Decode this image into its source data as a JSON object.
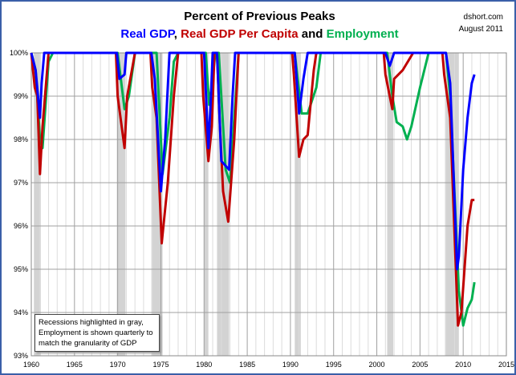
{
  "chart_data": {
    "type": "line",
    "title": "Percent of Previous Peaks",
    "subtitle_parts": [
      {
        "text": "Real GDP",
        "color": "#0000ff"
      },
      {
        "text": ", ",
        "color": "#000000"
      },
      {
        "text": "Real GDP Per Capita",
        "color": "#c00000"
      },
      {
        "text": " and ",
        "color": "#000000"
      },
      {
        "text": "Employment",
        "color": "#00b050"
      }
    ],
    "source": "dshort.com",
    "date": "August 2011",
    "annotation": "Recessions highlighted in gray, Employment is shown quarterly to match the granularity of GDP",
    "xlim": [
      1960,
      2015
    ],
    "ylim": [
      93,
      100
    ],
    "x_ticks": [
      "1960",
      "1965",
      "1970",
      "1975",
      "1980",
      "1985",
      "1990",
      "1995",
      "2000",
      "2005",
      "2010",
      "2015"
    ],
    "y_ticks": [
      "93%",
      "94%",
      "95%",
      "96%",
      "97%",
      "98%",
      "99%",
      "100%"
    ],
    "recessions": [
      [
        1960.3,
        1961.1
      ],
      [
        1969.9,
        1970.9
      ],
      [
        1973.9,
        1975.2
      ],
      [
        1980.0,
        1980.5
      ],
      [
        1981.5,
        1982.9
      ],
      [
        1990.5,
        1991.2
      ],
      [
        2001.2,
        2001.9
      ],
      [
        2007.9,
        2009.5
      ]
    ],
    "series": [
      {
        "name": "Employment",
        "color": "#00b050",
        "points": [
          [
            1960,
            100
          ],
          [
            1960.5,
            99.6
          ],
          [
            1961,
            98
          ],
          [
            1961.3,
            97.8
          ],
          [
            1962,
            99.8
          ],
          [
            1962.5,
            100
          ],
          [
            1970,
            100
          ],
          [
            1970.3,
            99.5
          ],
          [
            1970.8,
            98.7
          ],
          [
            1971.3,
            99
          ],
          [
            1972,
            100
          ],
          [
            1974.5,
            100
          ],
          [
            1975.2,
            97.2
          ],
          [
            1976,
            98.5
          ],
          [
            1976.5,
            99.8
          ],
          [
            1977,
            100
          ],
          [
            1980.2,
            100
          ],
          [
            1980.6,
            98.8
          ],
          [
            1981,
            99.4
          ],
          [
            1981.3,
            100
          ],
          [
            1981.7,
            100
          ],
          [
            1982.5,
            97.3
          ],
          [
            1983,
            97
          ],
          [
            1983.5,
            98.5
          ],
          [
            1984,
            100
          ],
          [
            1990.5,
            100
          ],
          [
            1991.3,
            98.6
          ],
          [
            1992,
            98.6
          ],
          [
            1993,
            99.2
          ],
          [
            1993.5,
            100
          ],
          [
            2001.2,
            100
          ],
          [
            2001.8,
            99
          ],
          [
            2002.3,
            98.4
          ],
          [
            2003,
            98.3
          ],
          [
            2003.5,
            98
          ],
          [
            2004,
            98.3
          ],
          [
            2005,
            99.2
          ],
          [
            2006,
            100
          ],
          [
            2008,
            100
          ],
          [
            2008.5,
            99
          ],
          [
            2009.5,
            94.5
          ],
          [
            2010,
            93.7
          ],
          [
            2010.5,
            94.1
          ],
          [
            2011,
            94.3
          ],
          [
            2011.3,
            94.7
          ]
        ]
      },
      {
        "name": "Real GDP Per Capita",
        "color": "#c00000",
        "points": [
          [
            1960,
            100
          ],
          [
            1960.4,
            99.2
          ],
          [
            1960.7,
            99
          ],
          [
            1961,
            97.2
          ],
          [
            1961.3,
            98.3
          ],
          [
            1962,
            100
          ],
          [
            1969.8,
            100
          ],
          [
            1970,
            99
          ],
          [
            1970.8,
            97.8
          ],
          [
            1971.1,
            99
          ],
          [
            1972,
            100
          ],
          [
            1973.8,
            100
          ],
          [
            1974,
            99.2
          ],
          [
            1974.5,
            98.5
          ],
          [
            1975.1,
            95.6
          ],
          [
            1975.8,
            97
          ],
          [
            1976.5,
            99
          ],
          [
            1977,
            100
          ],
          [
            1979.7,
            100
          ],
          [
            1979.9,
            99
          ],
          [
            1980.5,
            97.5
          ],
          [
            1980.9,
            98.3
          ],
          [
            1981.2,
            100
          ],
          [
            1981.5,
            100
          ],
          [
            1981.8,
            98.5
          ],
          [
            1982.2,
            96.8
          ],
          [
            1982.8,
            96.1
          ],
          [
            1983.5,
            98
          ],
          [
            1984,
            100
          ],
          [
            1990.2,
            100
          ],
          [
            1990.4,
            99.5
          ],
          [
            1991,
            97.6
          ],
          [
            1991.5,
            98
          ],
          [
            1992,
            98.1
          ],
          [
            1992.7,
            99.6
          ],
          [
            1993,
            100
          ],
          [
            2000.8,
            100
          ],
          [
            2001,
            99.5
          ],
          [
            2001.8,
            98.7
          ],
          [
            2002,
            99.4
          ],
          [
            2003,
            99.6
          ],
          [
            2004.2,
            100
          ],
          [
            2007.6,
            100
          ],
          [
            2007.8,
            99.5
          ],
          [
            2008.5,
            98.5
          ],
          [
            2009.4,
            93.7
          ],
          [
            2009.8,
            94
          ],
          [
            2010.5,
            96
          ],
          [
            2011,
            96.6
          ],
          [
            2011.3,
            96.6
          ]
        ]
      },
      {
        "name": "Real GDP",
        "color": "#0000ff",
        "points": [
          [
            1960,
            100
          ],
          [
            1960.5,
            99.6
          ],
          [
            1961,
            98.5
          ],
          [
            1961.2,
            99.3
          ],
          [
            1961.5,
            100
          ],
          [
            1969.9,
            100
          ],
          [
            1970.2,
            99.4
          ],
          [
            1970.8,
            99.5
          ],
          [
            1971,
            100
          ],
          [
            1973.9,
            100
          ],
          [
            1974.3,
            99.4
          ],
          [
            1975,
            96.8
          ],
          [
            1975.5,
            98
          ],
          [
            1976,
            100
          ],
          [
            1980,
            100
          ],
          [
            1980.5,
            97.8
          ],
          [
            1980.8,
            99
          ],
          [
            1981,
            100
          ],
          [
            1981.5,
            100
          ],
          [
            1982,
            97.5
          ],
          [
            1982.9,
            97.3
          ],
          [
            1983.3,
            99
          ],
          [
            1983.6,
            100
          ],
          [
            1990.5,
            100
          ],
          [
            1991,
            98.6
          ],
          [
            1991.5,
            99.4
          ],
          [
            1992,
            100
          ],
          [
            2001,
            100
          ],
          [
            2001.5,
            99.7
          ],
          [
            2002,
            100
          ],
          [
            2008,
            100
          ],
          [
            2008.5,
            99.3
          ],
          [
            2009.3,
            95
          ],
          [
            2009.5,
            95.3
          ],
          [
            2010,
            97.3
          ],
          [
            2010.5,
            98.5
          ],
          [
            2011,
            99.3
          ],
          [
            2011.3,
            99.5
          ]
        ]
      }
    ]
  }
}
